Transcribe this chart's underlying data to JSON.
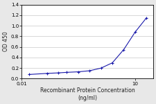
{
  "x_data": [
    0.016,
    0.047,
    0.094,
    0.156,
    0.313,
    0.625,
    1.25,
    2.5,
    5.0,
    10.0,
    20.0
  ],
  "y_data": [
    0.08,
    0.1,
    0.11,
    0.12,
    0.13,
    0.15,
    0.2,
    0.3,
    0.55,
    0.88,
    1.15
  ],
  "line_color": "#1a1aaa",
  "marker": "+",
  "marker_size": 3.5,
  "marker_color": "#1a1aaa",
  "xlabel": "Recombinant Protein Concentration\n(ng/ml)",
  "ylabel": "OD 450",
  "xlim": [
    0.01,
    30
  ],
  "ylim": [
    0.0,
    1.4
  ],
  "yticks": [
    0.0,
    0.2,
    0.4,
    0.6,
    0.8,
    1.0,
    1.2,
    1.4
  ],
  "xtick_vals": [
    0.01,
    10
  ],
  "xtick_labels": [
    "0.01",
    "10"
  ],
  "background_color": "#e8e8e8",
  "plot_bg": "#ffffff",
  "label_fontsize": 5.5,
  "tick_fontsize": 5.0,
  "linewidth": 0.8
}
